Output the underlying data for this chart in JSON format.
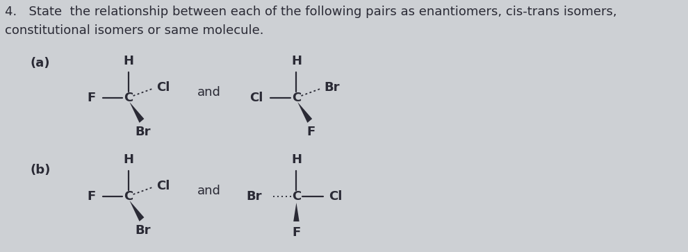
{
  "bg_color": "#cdd0d4",
  "text_color": "#2a2a35",
  "title_line1": "4.   State  the relationship between each of the following pairs as enantiomers, cis-trans isomers,",
  "title_line2": "constitutional isomers or same molecule.",
  "label_a": "(a)",
  "label_b": "(b)",
  "and_text": "and",
  "font_size_title": 13.0,
  "font_size_label": 13.0,
  "font_size_atom": 13.0
}
